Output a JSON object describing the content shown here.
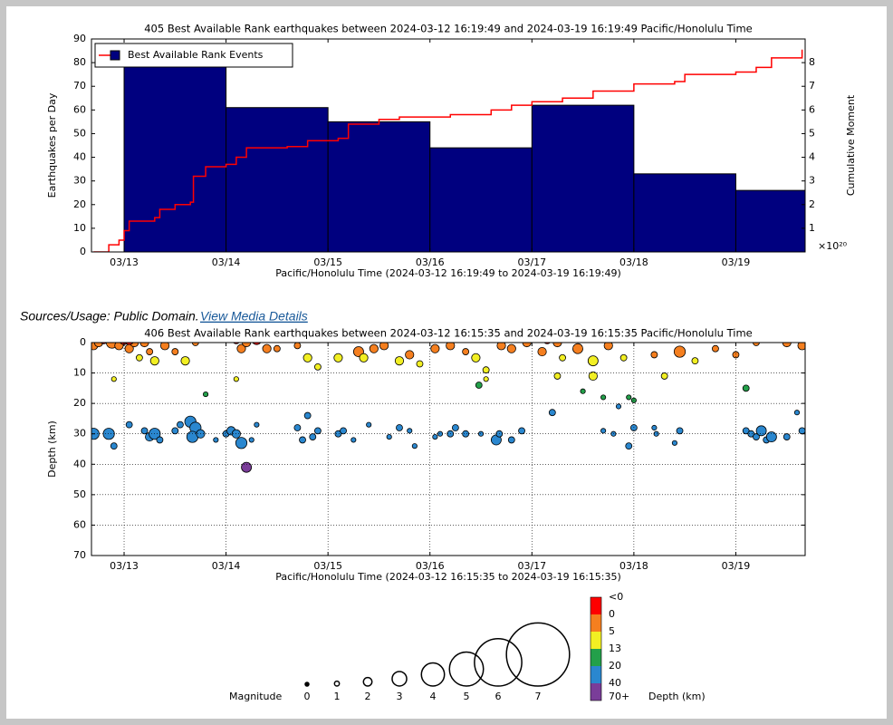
{
  "chart_data": [
    {
      "type": "bar_line",
      "title": "405 Best Available Rank earthquakes between 2024-03-12 16:19:49 and 2024-03-19 16:19:49 Pacific/Honolulu Time",
      "xlabel": "Pacific/Honolulu Time (2024-03-12 16:19:49 to 2024-03-19 16:19:49)",
      "ylabel": "Earthquakes per Day",
      "y2label": "Cumulative Moment",
      "y2_multiplier": "×10²⁰",
      "xlim": [
        12.68,
        19.68
      ],
      "xticks": [
        {
          "value": 13,
          "label": "03/13"
        },
        {
          "value": 14,
          "label": "03/14"
        },
        {
          "value": 15,
          "label": "03/15"
        },
        {
          "value": 16,
          "label": "03/16"
        },
        {
          "value": 17,
          "label": "03/17"
        },
        {
          "value": 18,
          "label": "03/18"
        },
        {
          "value": 19,
          "label": "03/19"
        }
      ],
      "ylim": [
        0,
        90
      ],
      "yticks": [
        0,
        10,
        20,
        30,
        40,
        50,
        60,
        70,
        80,
        90
      ],
      "y2lim": [
        0,
        9
      ],
      "y2ticks": [
        1,
        2,
        3,
        4,
        5,
        6,
        7,
        8
      ],
      "grid": false,
      "legend": "upper left",
      "series": [
        {
          "name": "Best Available Rank Events",
          "type": "histogram",
          "color": "#00007f",
          "bins": [
            13,
            14,
            15,
            16,
            17,
            18,
            19,
            20
          ],
          "values": [
            79,
            61,
            55,
            44,
            62,
            33,
            26
          ]
        },
        {
          "type": "step",
          "axis": "y2",
          "color": "#ff0000",
          "x": [
            12.7,
            12.85,
            12.95,
            13.0,
            13.05,
            13.3,
            13.35,
            13.5,
            13.65,
            13.68,
            13.8,
            14.0,
            14.1,
            14.2,
            14.6,
            14.8,
            15.1,
            15.2,
            15.5,
            15.7,
            16.2,
            16.6,
            16.8,
            17.0,
            17.3,
            17.6,
            18.0,
            18.4,
            18.5,
            19.0,
            19.2,
            19.35,
            19.65
          ],
          "values": [
            0,
            0.3,
            0.5,
            0.9,
            1.3,
            1.45,
            1.8,
            2.0,
            2.1,
            3.2,
            3.6,
            3.7,
            4.0,
            4.4,
            4.45,
            4.7,
            4.8,
            5.4,
            5.6,
            5.7,
            5.8,
            6.0,
            6.2,
            6.35,
            6.5,
            6.8,
            7.1,
            7.2,
            7.5,
            7.6,
            7.8,
            8.2,
            8.55
          ]
        }
      ]
    },
    {
      "type": "scatter",
      "title": "406 Best Available Rank earthquakes between 2024-03-12 16:15:35 and 2024-03-19 16:15:35 Pacific/Honolulu Time",
      "xlabel": "Pacific/Honolulu Time (2024-03-12 16:15:35 to 2024-03-19 16:15:35)",
      "ylabel": "Depth (km)",
      "xlim": [
        12.68,
        19.68
      ],
      "xticks": [
        {
          "value": 13,
          "label": "03/13"
        },
        {
          "value": 14,
          "label": "03/14"
        },
        {
          "value": 15,
          "label": "03/15"
        },
        {
          "value": 16,
          "label": "03/16"
        },
        {
          "value": 17,
          "label": "03/17"
        },
        {
          "value": 18,
          "label": "03/18"
        },
        {
          "value": 19,
          "label": "03/19"
        }
      ],
      "ylim": [
        0,
        70
      ],
      "invert_y": true,
      "yticks": [
        0,
        10,
        20,
        30,
        40,
        50,
        60,
        70
      ],
      "grid": true,
      "x": [
        12.7,
        12.85,
        12.9,
        13.05,
        13.2,
        13.25,
        13.3,
        13.35,
        13.5,
        13.55,
        13.65,
        13.7,
        13.67,
        13.75,
        13.9,
        14.0,
        14.05,
        14.1,
        14.15,
        14.25,
        14.3,
        14.2,
        14.7,
        14.75,
        14.8,
        14.85,
        14.9,
        15.1,
        15.15,
        15.25,
        15.4,
        15.6,
        15.7,
        15.8,
        15.85,
        16.05,
        16.1,
        16.2,
        16.25,
        16.35,
        16.5,
        16.65,
        16.68,
        16.8,
        16.9,
        17.2,
        17.7,
        17.8,
        17.95,
        18.0,
        18.2,
        18.22,
        18.4,
        18.45,
        19.1,
        19.15,
        19.2,
        19.25,
        19.3,
        19.35,
        19.5,
        19.6,
        19.65,
        13.8,
        14.1,
        16.48,
        16.55,
        17.5,
        17.7,
        17.85,
        17.95,
        18.0,
        19.1,
        12.9,
        12.7,
        12.75,
        12.8,
        12.88,
        12.95,
        13.0,
        13.05,
        13.1,
        13.15,
        13.2,
        13.25,
        13.3,
        13.4,
        13.5,
        13.6,
        13.7,
        14.1,
        14.15,
        14.2,
        14.3,
        14.4,
        14.5,
        14.7,
        14.8,
        14.9,
        15.1,
        15.2,
        15.3,
        15.35,
        15.45,
        15.55,
        15.7,
        15.8,
        15.9,
        16.05,
        16.2,
        16.35,
        16.45,
        16.55,
        16.7,
        16.8,
        16.95,
        17.1,
        17.15,
        17.25,
        17.3,
        17.45,
        17.6,
        17.75,
        17.9,
        18.2,
        18.3,
        18.45,
        18.6,
        18.8,
        19.0,
        19.2,
        19.5,
        19.65,
        13.05,
        14.25,
        17.25,
        17.6
      ],
      "values": [
        30,
        30,
        34,
        27,
        29,
        31,
        30,
        32,
        29,
        27,
        26,
        28,
        31,
        30,
        32,
        30,
        29,
        30,
        33,
        32,
        27,
        41,
        28,
        32,
        24,
        31,
        29,
        30,
        29,
        32,
        27,
        31,
        28,
        29,
        34,
        31,
        30,
        30,
        28,
        30,
        30,
        32,
        30,
        32,
        29,
        23,
        29,
        30,
        34,
        28,
        28,
        30,
        33,
        29,
        29,
        30,
        31,
        29,
        32,
        31,
        31,
        23,
        29,
        17,
        12,
        14,
        12,
        16,
        18,
        21,
        18,
        19,
        15,
        12,
        1,
        0,
        -1,
        0,
        1,
        -1,
        2,
        0,
        5,
        0,
        3,
        6,
        1,
        3,
        6,
        0,
        -1,
        2,
        0,
        -1,
        2,
        2,
        1,
        5,
        8,
        5,
        -1,
        3,
        5,
        2,
        1,
        6,
        4,
        7,
        2,
        1,
        3,
        5,
        9,
        1,
        2,
        0,
        3,
        -1,
        0,
        5,
        2,
        6,
        1,
        5,
        4,
        11,
        3,
        6,
        2,
        4,
        0,
        0,
        1,
        -1,
        -2,
        11,
        11
      ],
      "magnitude": [
        2.5,
        2.5,
        1.5,
        1.5,
        1.5,
        2,
        2.5,
        1.5,
        1.5,
        1.5,
        2.5,
        2.5,
        2.5,
        2,
        1,
        1.5,
        2,
        2,
        2.5,
        1,
        1,
        2.3,
        1.5,
        1.5,
        1.5,
        1.5,
        1.5,
        1.5,
        1.5,
        1,
        1,
        1,
        1.5,
        1,
        1,
        1,
        1,
        1.5,
        1.5,
        1.5,
        1,
        2.3,
        1.5,
        1.5,
        1.5,
        1.5,
        1,
        1,
        1.5,
        1.5,
        1,
        1,
        1,
        1.5,
        1.5,
        1.5,
        1.5,
        2.3,
        1.5,
        2.3,
        1.5,
        1,
        1.5,
        1,
        1,
        1.5,
        1,
        1,
        1,
        1,
        1,
        1,
        1.5,
        1,
        2,
        2,
        2,
        2.5,
        2,
        2.3,
        2,
        2,
        1.5,
        2,
        1.5,
        2,
        2,
        1.5,
        2,
        1.5,
        2,
        2,
        2,
        2.3,
        2,
        1.5,
        1.5,
        2,
        1.5,
        2,
        1.5,
        2.3,
        2,
        2,
        2,
        2,
        2,
        1.5,
        2,
        2,
        1.5,
        2,
        1.5,
        2,
        2,
        2,
        2,
        2,
        2,
        1.5,
        2.3,
        2.3,
        2,
        1.5,
        1.5,
        1.5,
        2.5,
        1.5,
        1.5,
        1.5,
        1.5,
        2,
        2,
        2.3,
        2.3,
        1.5,
        2
      ],
      "size_legend": {
        "title": "Magnitude",
        "values": [
          0,
          1,
          2,
          3,
          4,
          5,
          6,
          7
        ]
      },
      "color_legend": {
        "title": "Depth (km)",
        "ticks": [
          "<0",
          0,
          5,
          13,
          20,
          40,
          "70+"
        ],
        "colors": [
          "#ff0000",
          "#f57f1f",
          "#f2ef23",
          "#23a04a",
          "#2a87cf",
          "#7a3d99"
        ]
      }
    }
  ],
  "sources": {
    "text": "Sources/Usage: Public Domain.",
    "link": "View Media Details"
  }
}
